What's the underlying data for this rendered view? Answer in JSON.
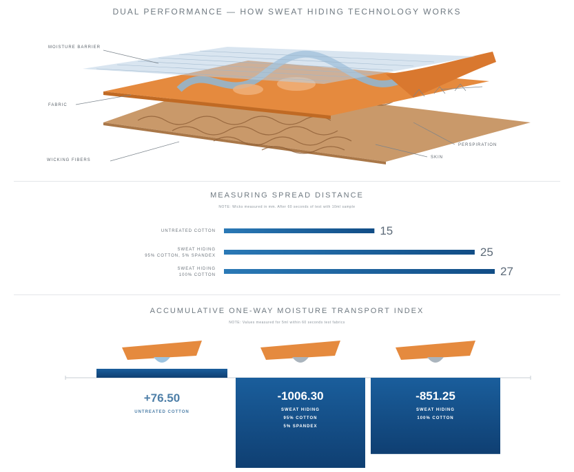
{
  "header": {
    "title": "DUAL PERFORMANCE — HOW SWEAT HIDING TECHNOLOGY WORKS"
  },
  "diagram": {
    "labels": {
      "moisture_barrier": "MOISTURE BARRIER",
      "fabric": "FABRIC",
      "wicking_fibers": "WICKING FIBERS",
      "perspiration": "PERSPIRATION",
      "skin": "SKIN"
    },
    "colors": {
      "barrier": "#b9cfe3",
      "fabric": "#e58a3e",
      "skin": "#c99a6a",
      "channel": "#8fb7d6"
    }
  },
  "spread": {
    "title": "MEASURING SPREAD DISTANCE",
    "note": "NOTE: Wicks measured in mm. After 60 seconds of test with 10ml sample"
  },
  "transport": {
    "title": "ACCUMULATIVE ONE-WAY MOISTURE TRANSPORT INDEX",
    "note": "NOTE: Values measured for 5ml within 60 seconds test fabrics"
  },
  "chart_data": [
    {
      "type": "bar",
      "orientation": "horizontal",
      "title": "MEASURING SPREAD DISTANCE",
      "categories": [
        "UNTREATED COTTON",
        "SWEAT HIDING|95% COTTON, 5% SPANDEX",
        "SWEAT HIDING|100% COTTON"
      ],
      "values": [
        15,
        25,
        27
      ],
      "value_labels": [
        "15",
        "25",
        "27"
      ],
      "xlim": [
        0,
        27
      ],
      "bar_color": "#1a5e9c",
      "grid": false
    },
    {
      "type": "bar",
      "title": "ACCUMULATIVE ONE-WAY MOISTURE TRANSPORT INDEX",
      "categories": [
        "UNTREATED COTTON",
        "SWEAT HIDING|95% COTTON|5% SPANDEX",
        "SWEAT HIDING|100% COTTON"
      ],
      "values": [
        76.5,
        -1006.3,
        -851.25
      ],
      "value_labels": [
        "+76.50",
        "-1006.30",
        "-851.25"
      ],
      "ylim": [
        -1006.3,
        76.5
      ],
      "bar_color": "#1a5e9c",
      "grid": false
    }
  ]
}
